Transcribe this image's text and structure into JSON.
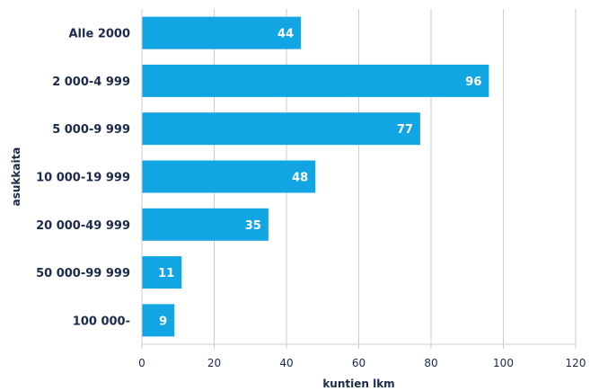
{
  "chart_data": {
    "type": "bar",
    "orientation": "horizontal",
    "categories": [
      "Alle 2000",
      "2 000-4 999",
      "5 000-9 999",
      "10 000-19 999",
      "20 000-49 999",
      "50 000-99 999",
      "100 000-"
    ],
    "values": [
      44,
      96,
      77,
      48,
      35,
      11,
      9
    ],
    "xlabel": "kuntien lkm",
    "ylabel": "asukkaita",
    "xlim": [
      0,
      120
    ],
    "xticks": [
      0,
      20,
      40,
      60,
      80,
      100,
      120
    ],
    "grid": true,
    "bar_color": "#11a5e3",
    "data_labels": true
  }
}
